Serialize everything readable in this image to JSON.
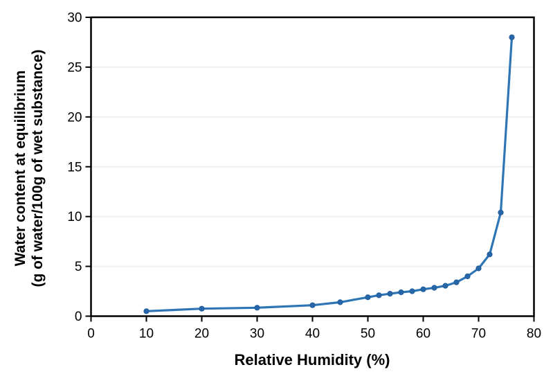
{
  "figure": {
    "background": "#FFFFFF",
    "axis_color": "#000000",
    "grid_color": "#EFEFEF",
    "line_color": "#2E75B6",
    "marker_fill": "#2766A8",
    "marker_stroke": "#1F5C99"
  },
  "chart_data": {
    "type": "line",
    "title": "",
    "xlabel": "Relative Humidity (%)",
    "ylabel_lines": [
      "Water content at equilibrium",
      "(g of water/100g of wet substance)"
    ],
    "xlim": [
      0,
      80
    ],
    "ylim": [
      0,
      30
    ],
    "xticks": [
      0,
      10,
      20,
      30,
      40,
      50,
      60,
      70,
      80
    ],
    "yticks": [
      0,
      5,
      10,
      15,
      20,
      25,
      30
    ],
    "grid": "horizontal",
    "legend": "none",
    "series": [
      {
        "name": "water-content-vs-relative-humidity",
        "marker": "circle",
        "x": [
          10,
          20,
          30,
          40,
          45,
          50,
          52,
          54,
          56,
          58,
          60,
          62,
          64,
          66,
          68,
          70,
          72,
          74,
          76
        ],
        "y": [
          0.5,
          0.75,
          0.85,
          1.1,
          1.4,
          1.9,
          2.1,
          2.25,
          2.4,
          2.5,
          2.7,
          2.85,
          3.05,
          3.4,
          4.0,
          4.8,
          6.2,
          10.4,
          28.0
        ]
      }
    ]
  }
}
